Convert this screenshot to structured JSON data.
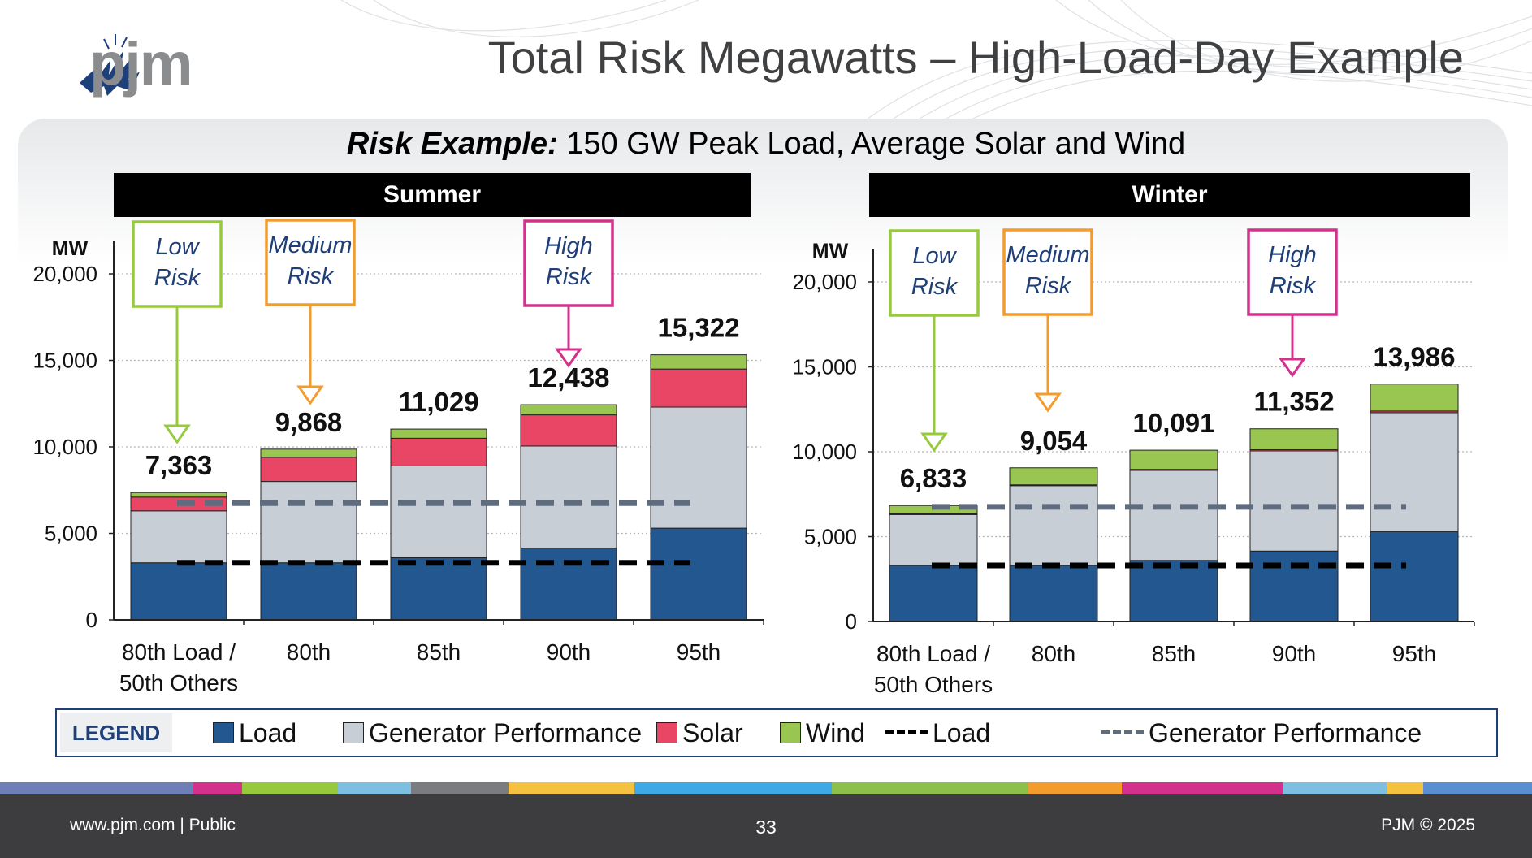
{
  "header": {
    "logo_text": "pjm",
    "title": "Total Risk Megawatts – High-Load-Day Example"
  },
  "subtitle": {
    "bold": "Risk Example:",
    "rest": " 150 GW Peak Load, Average Solar and Wind"
  },
  "colors": {
    "load": "#23578f",
    "generator_performance": "#c8ced6",
    "solar": "#e94665",
    "wind": "#99c651",
    "load_line": "#000000",
    "gen_perf_line": "#5e6c7d",
    "low_risk": "#97c93d",
    "medium_risk": "#f39c2e",
    "high_risk": "#d4318d",
    "legend_border": "#1f3f78"
  },
  "chart_data": [
    {
      "type": "bar",
      "stacked": true,
      "title": "Summer",
      "ylabel": "MW",
      "ylim": [
        0,
        20000
      ],
      "yticks": [
        "0",
        "5,000",
        "10,000",
        "15,000",
        "20,000"
      ],
      "categories": [
        "80th Load /\n50th Others",
        "80th",
        "85th",
        "90th",
        "95th"
      ],
      "series": [
        {
          "name": "Load",
          "values": [
            3300,
            3300,
            3600,
            4150,
            5300
          ]
        },
        {
          "name": "Generator Performance",
          "values": [
            3000,
            4700,
            5300,
            5900,
            7000
          ]
        },
        {
          "name": "Solar",
          "values": [
            800,
            1400,
            1600,
            1800,
            2200
          ]
        },
        {
          "name": "Wind",
          "values": [
            263,
            468,
            529,
            588,
            822
          ]
        }
      ],
      "totals": [
        "7,363",
        "9,868",
        "11,029",
        "12,438",
        "15,322"
      ],
      "total_values": [
        7363,
        9868,
        11029,
        12438,
        15322
      ],
      "lines": [
        {
          "name": "Load",
          "value": 3300
        },
        {
          "name": "Generator Performance",
          "value": 6750
        }
      ],
      "risk_callouts": [
        {
          "line1": "Low",
          "line2": "Risk",
          "category_index": 0,
          "level": "low"
        },
        {
          "line1": "Medium",
          "line2": "Risk",
          "category_index": 1,
          "level": "medium"
        },
        {
          "line1": "High",
          "line2": "Risk",
          "category_index": 3,
          "level": "high"
        }
      ]
    },
    {
      "type": "bar",
      "stacked": true,
      "title": "Winter",
      "ylabel": "MW",
      "ylim": [
        0,
        20000
      ],
      "yticks": [
        "0",
        "5,000",
        "10,000",
        "15,000",
        "20,000"
      ],
      "categories": [
        "80th Load /\n50th Others",
        "80th",
        "85th",
        "90th",
        "95th"
      ],
      "series": [
        {
          "name": "Load",
          "values": [
            3300,
            3300,
            3600,
            4150,
            5300
          ]
        },
        {
          "name": "Generator Performance",
          "values": [
            3000,
            4700,
            5300,
            5900,
            7000
          ]
        },
        {
          "name": "Solar",
          "values": [
            50,
            50,
            60,
            70,
            100
          ]
        },
        {
          "name": "Wind",
          "values": [
            483,
            1004,
            1131,
            1232,
            1586
          ]
        }
      ],
      "totals": [
        "6,833",
        "9,054",
        "10,091",
        "11,352",
        "13,986"
      ],
      "total_values": [
        6833,
        9054,
        10091,
        11352,
        13986
      ],
      "lines": [
        {
          "name": "Load",
          "value": 3300
        },
        {
          "name": "Generator Performance",
          "value": 6750
        }
      ],
      "risk_callouts": [
        {
          "line1": "Low",
          "line2": "Risk",
          "category_index": 0,
          "level": "low"
        },
        {
          "line1": "Medium",
          "line2": "Risk",
          "category_index": 1,
          "level": "medium"
        },
        {
          "line1": "High",
          "line2": "Risk",
          "category_index": 3,
          "level": "high"
        }
      ]
    }
  ],
  "legend": {
    "title": "LEGEND",
    "items": [
      "Load",
      "Generator Performance",
      "Solar",
      "Wind",
      "Load",
      "Generator Performance"
    ]
  },
  "footer": {
    "left": "www.pjm.com | Public",
    "page": "33",
    "right": "PJM © 2025"
  }
}
